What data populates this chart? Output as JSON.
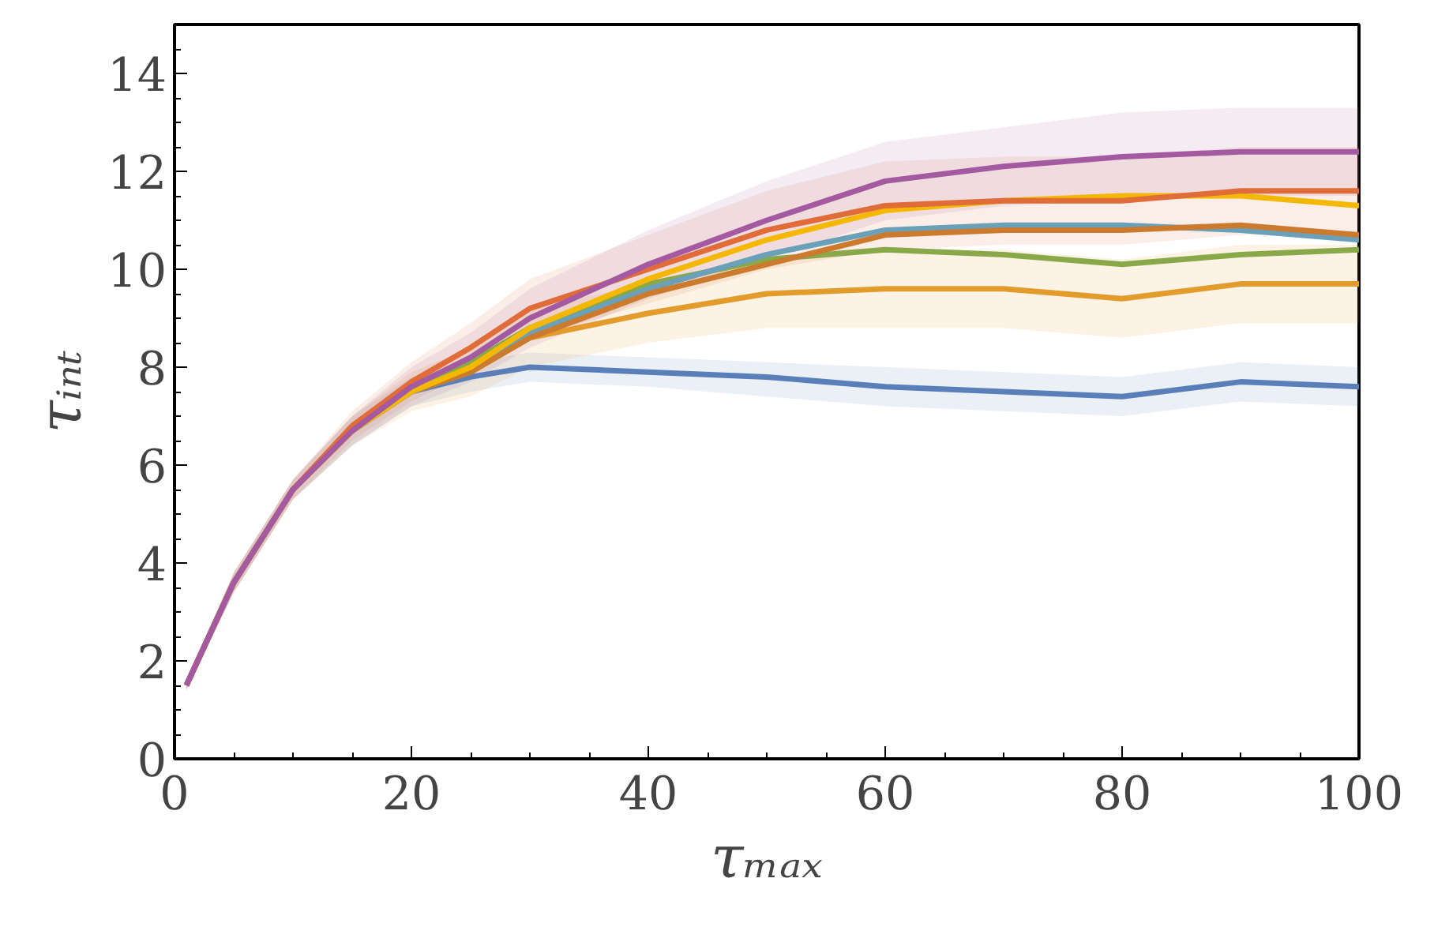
{
  "chart_data": {
    "type": "line",
    "xlabel": "τₘₐₓ",
    "ylabel": "τᵢₙₜ",
    "xlim": [
      0,
      100
    ],
    "ylim": [
      0,
      15
    ],
    "xticks": [
      0,
      20,
      40,
      60,
      80,
      100
    ],
    "yticks": [
      0,
      2,
      4,
      6,
      8,
      10,
      12,
      14
    ],
    "grid": false,
    "line_style": "solid",
    "marker": "none",
    "x": [
      1,
      5,
      10,
      15,
      20,
      25,
      30,
      40,
      50,
      60,
      70,
      80,
      90,
      100
    ],
    "series": [
      {
        "color": "#5a7fb8",
        "values": [
          null,
          null,
          null,
          6.7,
          7.5,
          7.8,
          8.0,
          7.9,
          7.8,
          7.6,
          7.5,
          7.4,
          7.7,
          7.6
        ],
        "lower": [
          1.4,
          3.4,
          5.3,
          6.4,
          7.2,
          7.5,
          7.7,
          7.6,
          7.4,
          7.2,
          7.1,
          7.0,
          7.3,
          7.2
        ],
        "upper": [
          1.6,
          3.8,
          5.7,
          7.0,
          7.8,
          8.1,
          8.3,
          8.2,
          8.1,
          8.0,
          7.9,
          7.8,
          8.1,
          8.0
        ]
      },
      {
        "color": "#e39c2c",
        "values": [
          1.5,
          3.6,
          5.5,
          6.7,
          7.5,
          7.9,
          8.6,
          9.1,
          9.5,
          9.6,
          9.6,
          9.4,
          9.7,
          9.7
        ],
        "lower": [
          1.4,
          3.4,
          5.3,
          6.4,
          7.1,
          7.4,
          8.0,
          8.5,
          8.8,
          8.8,
          8.8,
          8.6,
          8.9,
          8.9
        ],
        "upper": [
          1.6,
          3.8,
          5.7,
          7.0,
          7.9,
          8.4,
          9.2,
          9.7,
          10.2,
          10.4,
          10.4,
          10.2,
          10.5,
          10.5
        ]
      },
      {
        "color": "#88a84a",
        "values": [
          1.5,
          3.6,
          5.5,
          6.7,
          7.6,
          8.1,
          8.8,
          9.7,
          10.2,
          10.4,
          10.3,
          10.1,
          10.3,
          10.4
        ]
      },
      {
        "color": "#6aa0b8",
        "values": [
          null,
          null,
          null,
          6.7,
          7.5,
          7.9,
          8.7,
          9.6,
          10.3,
          10.8,
          10.9,
          10.9,
          10.8,
          10.6
        ]
      },
      {
        "color": "#cc7a2e",
        "values": [
          1.5,
          3.6,
          5.5,
          6.7,
          7.5,
          7.9,
          8.6,
          9.5,
          10.1,
          10.7,
          10.8,
          10.8,
          10.9,
          10.7
        ]
      },
      {
        "color": "#f5b800",
        "values": [
          null,
          null,
          5.5,
          6.7,
          7.5,
          8.0,
          8.8,
          9.8,
          10.6,
          11.2,
          11.4,
          11.5,
          11.5,
          11.3
        ]
      },
      {
        "color": "#e06c3a",
        "values": [
          1.5,
          3.6,
          5.5,
          6.8,
          7.7,
          8.4,
          9.2,
          10.0,
          10.8,
          11.3,
          11.4,
          11.4,
          11.6,
          11.6
        ],
        "lower": [
          1.4,
          3.4,
          5.3,
          6.5,
          7.3,
          7.9,
          8.6,
          9.3,
          10.0,
          10.4,
          10.5,
          10.5,
          10.7,
          10.7
        ],
        "upper": [
          1.6,
          3.8,
          5.7,
          7.1,
          8.1,
          8.9,
          9.8,
          10.7,
          11.6,
          12.2,
          12.3,
          12.3,
          12.5,
          12.5
        ]
      },
      {
        "color": "#a45aa0",
        "values": [
          1.5,
          3.6,
          5.5,
          6.7,
          7.6,
          8.2,
          9.0,
          10.1,
          11.0,
          11.8,
          12.1,
          12.3,
          12.4,
          12.4
        ],
        "lower": [
          1.4,
          3.4,
          5.3,
          6.4,
          7.2,
          7.7,
          8.4,
          9.4,
          10.2,
          11.0,
          11.3,
          11.4,
          11.5,
          11.5
        ],
        "upper": [
          1.6,
          3.8,
          5.7,
          7.0,
          8.0,
          8.7,
          9.6,
          10.8,
          11.8,
          12.6,
          12.9,
          13.2,
          13.3,
          13.3
        ]
      }
    ]
  }
}
